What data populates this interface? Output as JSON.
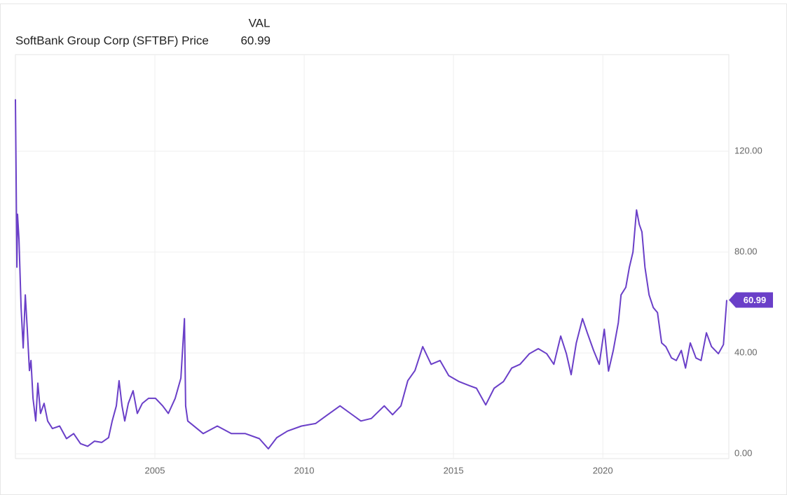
{
  "chart_data": {
    "type": "line",
    "title": "SoftBank Group Corp (SFTBF) Price",
    "value_column": "VAL",
    "color": "#6a3fc8",
    "grid": true,
    "xlim": [
      2000.33,
      2024.22
    ],
    "xticks": [
      2005,
      2010,
      2015,
      2020
    ],
    "ylim": [
      -1.9,
      158.3
    ],
    "yticks": [
      {
        "value": 0,
        "label": "0.00"
      },
      {
        "value": 40,
        "label": "40.00"
      },
      {
        "value": 80,
        "label": "80.00"
      },
      {
        "value": 120,
        "label": "120.00"
      }
    ],
    "x": [
      2000.33,
      2000.35,
      2000.38,
      2000.4,
      2000.45,
      2000.52,
      2000.59,
      2000.66,
      2000.73,
      2000.8,
      2000.85,
      2000.92,
      2001.01,
      2001.08,
      2001.17,
      2001.29,
      2001.41,
      2001.57,
      2001.81,
      2002.04,
      2002.28,
      2002.51,
      2002.75,
      2002.98,
      2003.22,
      2003.45,
      2003.57,
      2003.71,
      2003.8,
      2003.9,
      2003.99,
      2004.11,
      2004.27,
      2004.41,
      2004.58,
      2004.79,
      2005.02,
      2005.26,
      2005.45,
      2005.68,
      2005.87,
      2005.99,
      2006.03,
      2006.1,
      2006.62,
      2007.09,
      2007.56,
      2008.03,
      2008.5,
      2008.8,
      2009.08,
      2009.44,
      2009.91,
      2010.38,
      2010.73,
      2011.2,
      2011.55,
      2011.9,
      2012.25,
      2012.68,
      2012.96,
      2013.24,
      2013.47,
      2013.71,
      2013.97,
      2014.25,
      2014.55,
      2014.84,
      2015.19,
      2015.54,
      2015.77,
      2016.08,
      2016.36,
      2016.67,
      2016.95,
      2017.23,
      2017.54,
      2017.84,
      2018.12,
      2018.36,
      2018.59,
      2018.78,
      2018.94,
      2019.11,
      2019.32,
      2019.48,
      2019.69,
      2019.88,
      2020.05,
      2020.19,
      2020.35,
      2020.52,
      2020.61,
      2020.77,
      2020.89,
      2021.01,
      2021.13,
      2021.22,
      2021.31,
      2021.41,
      2021.55,
      2021.69,
      2021.83,
      2021.97,
      2022.11,
      2022.3,
      2022.46,
      2022.63,
      2022.77,
      2022.93,
      2023.12,
      2023.29,
      2023.47,
      2023.64,
      2023.87,
      2024.04,
      2024.15
    ],
    "values": [
      140.6,
      113,
      74,
      95,
      85,
      58,
      42,
      63,
      49,
      33,
      37,
      22,
      13,
      28,
      16,
      20,
      13,
      10,
      11,
      6,
      8,
      4,
      3,
      5,
      4.5,
      6.4,
      13,
      19,
      29,
      19,
      13,
      20,
      25,
      16,
      20,
      22,
      22,
      19,
      16,
      22,
      30,
      53.6,
      19,
      13,
      8,
      11,
      8,
      8,
      6,
      2,
      6.4,
      9,
      11,
      12,
      15,
      19,
      16,
      13,
      14,
      19,
      15.5,
      19,
      29,
      33,
      42.5,
      35.5,
      37,
      31,
      28.6,
      27,
      26,
      19.4,
      26,
      28.6,
      34,
      35.5,
      39.7,
      41.7,
      39.7,
      35.5,
      46.7,
      39.7,
      31.4,
      43.9,
      53.6,
      48,
      41,
      35.5,
      49.4,
      32.8,
      41,
      52,
      63,
      66,
      74,
      80,
      96.7,
      91,
      88,
      74,
      63,
      58,
      56,
      44,
      42.5,
      38,
      37,
      41,
      34,
      44,
      38,
      37,
      48,
      42.5,
      39.7,
      43.3,
      60.99
    ]
  }
}
